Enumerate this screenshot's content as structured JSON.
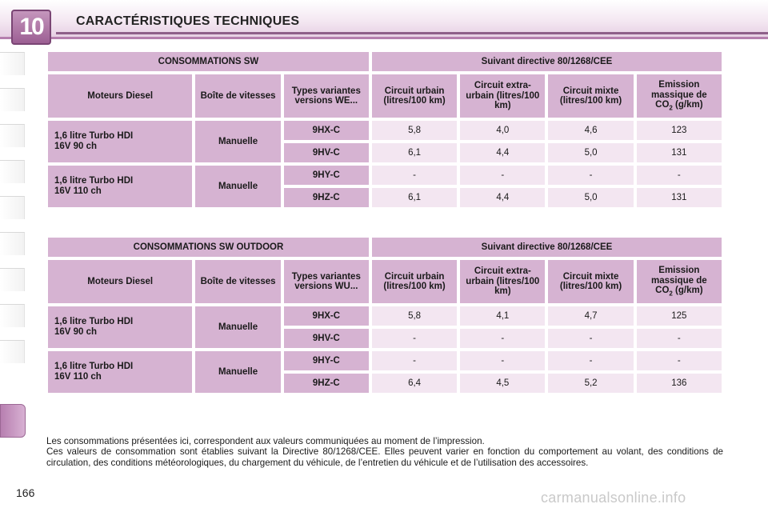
{
  "header": {
    "chapter_number": "10",
    "title": "CARACTÉRISTIQUES TECHNIQUES"
  },
  "tables": [
    {
      "title": "CONSOMMATIONS SW",
      "directive": "Suivant directive 80/1268/CEE",
      "columns": {
        "engine": "Moteurs Diesel",
        "gearbox": "Boîte de vitesses",
        "variants": "Types variantes versions WE...",
        "urban": "Circuit urbain (litres/100 km)",
        "extra_urban": "Circuit extra-urbain (litres/100 km)",
        "mixed": "Circuit mixte (litres/100 km)",
        "co2_line1": "Emission massique de",
        "co2_main": "CO",
        "co2_sub": "2",
        "co2_unit": " (g/km)"
      },
      "groups": [
        {
          "engine_line1": "1,6 litre Turbo HDI",
          "engine_line2": "16V 90 ch",
          "gearbox": "Manuelle",
          "rows": [
            {
              "code": "9HX-C",
              "urban": "5,8",
              "extra_urban": "4,0",
              "mixed": "4,6",
              "co2": "123"
            },
            {
              "code": "9HV-C",
              "urban": "6,1",
              "extra_urban": "4,4",
              "mixed": "5,0",
              "co2": "131"
            }
          ]
        },
        {
          "engine_line1": "1,6 litre Turbo HDI",
          "engine_line2": "16V 110 ch",
          "gearbox": "Manuelle",
          "rows": [
            {
              "code": "9HY-C",
              "urban": "-",
              "extra_urban": "-",
              "mixed": "-",
              "co2": "-"
            },
            {
              "code": "9HZ-C",
              "urban": "6,1",
              "extra_urban": "4,4",
              "mixed": "5,0",
              "co2": "131"
            }
          ]
        }
      ]
    },
    {
      "title": "CONSOMMATIONS SW OUTDOOR",
      "directive": "Suivant directive 80/1268/CEE",
      "columns": {
        "engine": "Moteurs Diesel",
        "gearbox": "Boîte de vitesses",
        "variants": "Types variantes versions WU...",
        "urban": "Circuit urbain (litres/100 km)",
        "extra_urban": "Circuit extra-urbain (litres/100 km)",
        "mixed": "Circuit mixte (litres/100 km)",
        "co2_line1": "Emission massique de",
        "co2_main": "CO",
        "co2_sub": "2",
        "co2_unit": " (g/km)"
      },
      "groups": [
        {
          "engine_line1": "1,6 litre Turbo HDI",
          "engine_line2": "16V 90 ch",
          "gearbox": "Manuelle",
          "rows": [
            {
              "code": "9HX-C",
              "urban": "5,8",
              "extra_urban": "4,1",
              "mixed": "4,7",
              "co2": "125"
            },
            {
              "code": "9HV-C",
              "urban": "-",
              "extra_urban": "-",
              "mixed": "-",
              "co2": "-"
            }
          ]
        },
        {
          "engine_line1": "1,6 litre Turbo HDI",
          "engine_line2": "16V 110 ch",
          "gearbox": "Manuelle",
          "rows": [
            {
              "code": "9HY-C",
              "urban": "-",
              "extra_urban": "-",
              "mixed": "-",
              "co2": "-"
            },
            {
              "code": "9HZ-C",
              "urban": "6,4",
              "extra_urban": "4,5",
              "mixed": "5,2",
              "co2": "136"
            }
          ]
        }
      ]
    }
  ],
  "footnote": {
    "line1": "Les consommations présentées ici, correspondent aux valeurs communiquées au moment de l’impression.",
    "line2": "Ces valeurs de consommation sont établies suivant la Directive 80/1268/CEE. Elles peuvent varier en fonction du comportement au volant, des conditions de circulation, des conditions météorologiques, du chargement du véhicule, de l’entretien du véhicule et de l’utilisation des accessoires."
  },
  "page_number": "166",
  "watermark": "carmanualsonline.info",
  "colors": {
    "header_cell": "#d6b3d2",
    "value_cell": "#f3e6f1",
    "accent": "#9c5f93"
  }
}
